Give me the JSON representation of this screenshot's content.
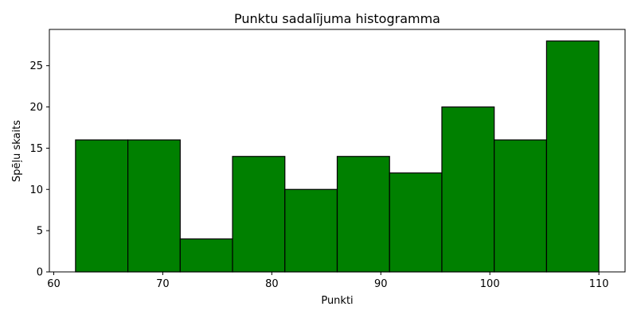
{
  "chart_data": {
    "type": "bar",
    "title": "Punktu sadalījuma histogramma",
    "xlabel": "Punkti",
    "ylabel": "Spēļu skaits",
    "bins": [
      {
        "start": 62.0,
        "end": 66.8,
        "count": 16
      },
      {
        "start": 66.8,
        "end": 71.6,
        "count": 16
      },
      {
        "start": 71.6,
        "end": 76.4,
        "count": 4
      },
      {
        "start": 76.4,
        "end": 81.2,
        "count": 14
      },
      {
        "start": 81.2,
        "end": 86.0,
        "count": 10
      },
      {
        "start": 86.0,
        "end": 90.8,
        "count": 14
      },
      {
        "start": 90.8,
        "end": 95.6,
        "count": 12
      },
      {
        "start": 95.6,
        "end": 100.4,
        "count": 20
      },
      {
        "start": 100.4,
        "end": 105.2,
        "count": 16
      },
      {
        "start": 105.2,
        "end": 110.0,
        "count": 28
      }
    ],
    "xlim": [
      59.6,
      112.4
    ],
    "ylim": [
      0,
      29.4
    ],
    "xticks": [
      "60",
      "70",
      "80",
      "90",
      "100",
      "110"
    ],
    "yticks": [
      "0",
      "5",
      "10",
      "15",
      "20",
      "25"
    ],
    "bar_color": "#008000",
    "edge_color": "#000000",
    "grid": false,
    "legend": false
  }
}
